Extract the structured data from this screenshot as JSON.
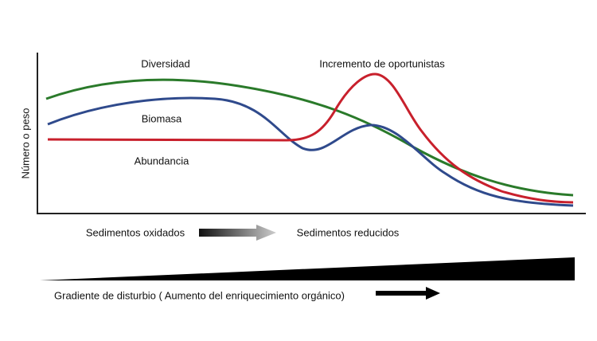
{
  "y_axis_label": "Número o peso",
  "curves": [
    {
      "label": "Diversidad"
    },
    {
      "label": "Biomasa"
    },
    {
      "label": "Abundancia"
    },
    {
      "label": "Incremento de oportunistas"
    }
  ],
  "sediments": {
    "left": "Sedimentos oxidados",
    "right": "Sedimentos reducidos"
  },
  "gradient": "Gradiente de disturbio ( Aumento del enriquecimiento orgánico)"
}
